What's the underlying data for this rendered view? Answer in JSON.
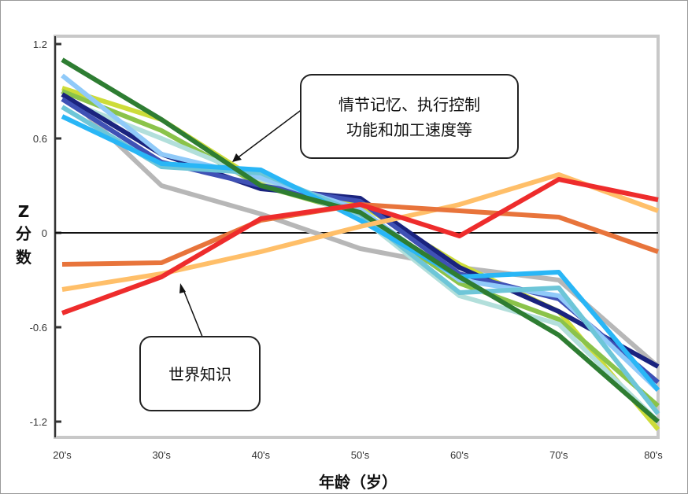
{
  "chart_data": {
    "type": "line",
    "categories": [
      "20's",
      "30's",
      "40's",
      "50's",
      "60's",
      "70's",
      "80's"
    ],
    "ylim": [
      -1.3,
      1.25
    ],
    "yticks": [
      1.2,
      0.6,
      0,
      -0.6,
      -1.2
    ],
    "ytick_labels": [
      "1.2",
      "0.6",
      "0",
      "-0.6",
      "-1.2"
    ],
    "zero_line": true,
    "ylabel_lines": [
      "Z",
      "分",
      "数"
    ],
    "xlabel": "年龄（岁）",
    "series": [
      {
        "color": "#b7b7b7",
        "width": 6,
        "values": [
          0.9,
          0.3,
          0.12,
          -0.1,
          -0.22,
          -0.3,
          -0.85
        ]
      },
      {
        "color": "#cddc39",
        "width": 6,
        "values": [
          0.92,
          0.72,
          0.32,
          0.18,
          -0.2,
          -0.5,
          -1.25
        ]
      },
      {
        "color": "#8bc34a",
        "width": 6,
        "values": [
          0.9,
          0.65,
          0.3,
          0.12,
          -0.32,
          -0.55,
          -1.1
        ]
      },
      {
        "color": "#b2dfdb",
        "width": 6,
        "values": [
          0.85,
          0.6,
          0.34,
          0.1,
          -0.4,
          -0.58,
          -1.2
        ]
      },
      {
        "color": "#1a237e",
        "width": 6,
        "values": [
          0.88,
          0.5,
          0.28,
          0.22,
          -0.22,
          -0.5,
          -0.85
        ]
      },
      {
        "color": "#3f51b5",
        "width": 6,
        "values": [
          0.85,
          0.45,
          0.3,
          0.2,
          -0.26,
          -0.42,
          -0.95
        ]
      },
      {
        "color": "#90caf9",
        "width": 6,
        "values": [
          1.0,
          0.5,
          0.35,
          0.15,
          -0.3,
          -0.4,
          -1.0
        ]
      },
      {
        "color": "#6ec6d8",
        "width": 6,
        "values": [
          0.8,
          0.42,
          0.38,
          0.12,
          -0.38,
          -0.35,
          -1.15
        ]
      },
      {
        "color": "#29b6f6",
        "width": 6,
        "values": [
          0.74,
          0.44,
          0.4,
          0.08,
          -0.28,
          -0.25,
          -1.0
        ]
      },
      {
        "color": "#2e7d32",
        "width": 6,
        "values": [
          1.1,
          0.72,
          0.3,
          0.13,
          -0.28,
          -0.65,
          -1.2
        ]
      },
      {
        "color": "#ffbf69",
        "width": 6,
        "values": [
          -0.36,
          -0.26,
          -0.12,
          0.04,
          0.18,
          0.37,
          0.14
        ]
      },
      {
        "color": "#e8743b",
        "width": 6,
        "values": [
          -0.2,
          -0.19,
          0.08,
          0.18,
          0.14,
          0.1,
          -0.12
        ]
      },
      {
        "color": "#ee2c2c",
        "width": 6,
        "values": [
          -0.51,
          -0.28,
          0.09,
          0.18,
          -0.02,
          0.34,
          0.21
        ]
      }
    ],
    "annotations": [
      {
        "lines": [
          "情节记忆、执行控制",
          "功能和加工速度等"
        ]
      },
      {
        "lines": [
          "世界知识"
        ]
      }
    ]
  }
}
